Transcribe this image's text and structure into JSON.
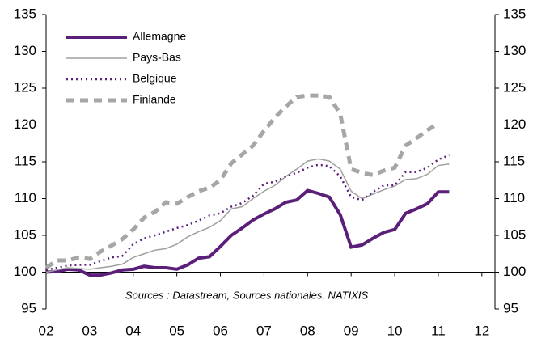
{
  "chart_data": {
    "type": "line",
    "annotation": "Sources : Datastream, Sources nationales, NATIXIS",
    "x": [
      2002,
      2002.25,
      2002.5,
      2002.75,
      2003,
      2003.25,
      2003.5,
      2003.75,
      2004,
      2004.25,
      2004.5,
      2004.75,
      2005,
      2005.25,
      2005.5,
      2005.75,
      2006,
      2006.25,
      2006.5,
      2006.75,
      2007,
      2007.25,
      2007.5,
      2007.75,
      2008,
      2008.25,
      2008.5,
      2008.75,
      2009,
      2009.25,
      2009.5,
      2009.75,
      2010,
      2010.25,
      2010.5,
      2010.75,
      2011,
      2011.25
    ],
    "series": [
      {
        "name": "Allemagne",
        "color": "#5b1f7a",
        "width": 4,
        "dash": "none",
        "values": [
          100,
          100.1,
          100.4,
          100.3,
          99.6,
          99.6,
          99.9,
          100.3,
          100.4,
          100.8,
          100.6,
          100.6,
          100.4,
          101,
          101.9,
          102.1,
          103.5,
          105,
          106,
          107.1,
          107.9,
          108.6,
          109.5,
          109.8,
          111.1,
          110.7,
          110.2,
          107.8,
          103.4,
          103.7,
          104.6,
          105.4,
          105.8,
          108,
          108.6,
          109.3,
          110.9,
          110.9
        ]
      },
      {
        "name": "Pays-Bas",
        "color": "#a0a0a0",
        "width": 1.5,
        "dash": "none",
        "values": [
          100,
          100.3,
          100.6,
          100.5,
          100.4,
          100.6,
          100.8,
          101.1,
          102,
          102.5,
          103,
          103.2,
          103.8,
          104.8,
          105.5,
          106.1,
          107,
          108.6,
          108.9,
          110,
          111,
          111.8,
          113,
          114,
          115.1,
          115.4,
          115.1,
          114,
          111,
          110,
          110.6,
          111.2,
          111.7,
          112.6,
          112.7,
          113.3,
          114.5,
          114.7
        ]
      },
      {
        "name": "Belgique",
        "color": "#5b1f7a",
        "width": 2.5,
        "dash": "2 4",
        "values": [
          100.3,
          100.6,
          100.9,
          101,
          101,
          101.5,
          102,
          102.2,
          103.8,
          104.6,
          105,
          105.5,
          106,
          106.4,
          107,
          107.7,
          108,
          108.9,
          109.4,
          110.4,
          112,
          112.3,
          113,
          113.5,
          114.2,
          114.6,
          114.4,
          113,
          110.2,
          109.8,
          110.9,
          111.8,
          111.8,
          113.6,
          113.6,
          114.2,
          115.3,
          115.9
        ]
      },
      {
        "name": "Finlande",
        "color": "#a6a6a6",
        "width": 5,
        "dash": "10 7",
        "values": [
          100.6,
          101.6,
          101.6,
          102,
          101.8,
          102.8,
          103.6,
          104.5,
          105.8,
          107.4,
          108.2,
          109.5,
          109.3,
          110.2,
          111,
          111.5,
          112.5,
          114.8,
          116,
          117.2,
          119.2,
          121,
          122.5,
          123.8,
          124,
          124,
          123.8,
          121.5,
          114,
          113.5,
          113.2,
          113.8,
          114.2,
          117.2,
          118.2,
          119.3,
          120.2,
          null
        ]
      }
    ],
    "xlim": [
      2002,
      2012.3
    ],
    "xticks": [
      {
        "value": 2002,
        "label": "02"
      },
      {
        "value": 2003,
        "label": "03"
      },
      {
        "value": 2004,
        "label": "04"
      },
      {
        "value": 2005,
        "label": "05"
      },
      {
        "value": 2006,
        "label": "06"
      },
      {
        "value": 2007,
        "label": "07"
      },
      {
        "value": 2008,
        "label": "08"
      },
      {
        "value": 2009,
        "label": "09"
      },
      {
        "value": 2010,
        "label": "10"
      },
      {
        "value": 2011,
        "label": "11"
      },
      {
        "value": 2012,
        "label": "12"
      }
    ],
    "x_axis_at": 100,
    "ylim": [
      95,
      135
    ],
    "yticks": [
      95,
      100,
      105,
      110,
      115,
      120,
      125,
      130,
      135
    ],
    "y2lim": [
      95,
      135
    ],
    "y2ticks": [
      95,
      100,
      105,
      110,
      115,
      120,
      125,
      130,
      135
    ],
    "legend": "upper left"
  }
}
